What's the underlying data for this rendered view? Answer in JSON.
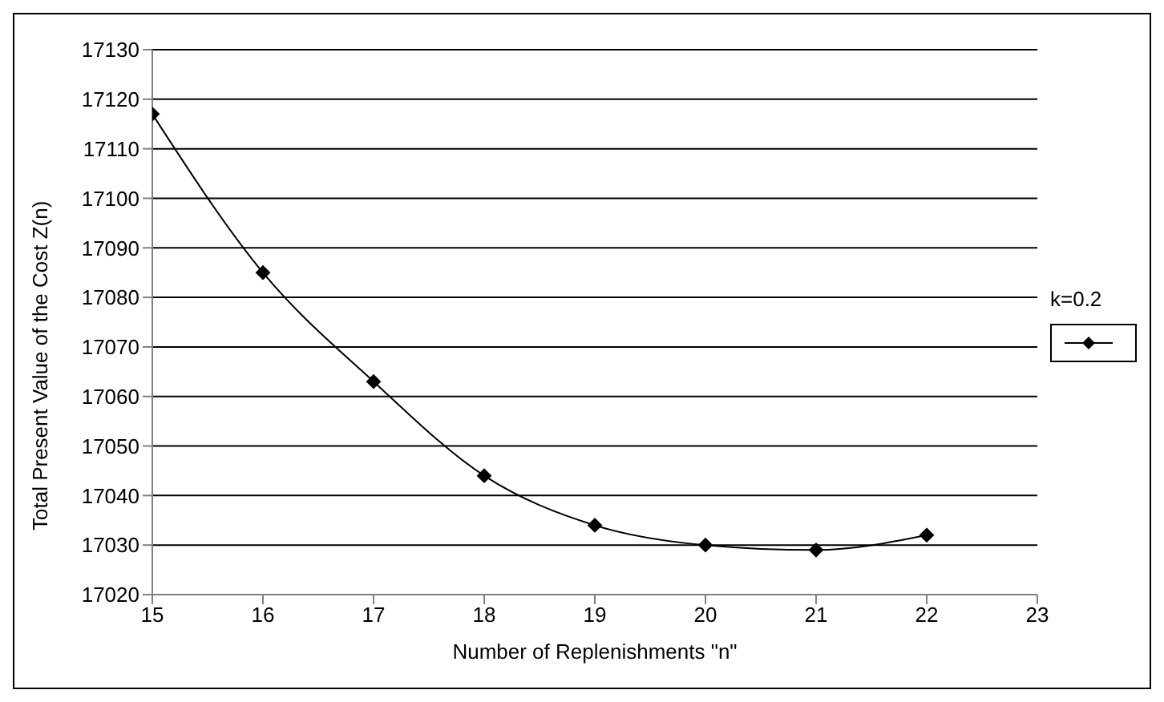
{
  "chart_data": {
    "type": "line",
    "xlabel": "Number of Replenishments \"n\"",
    "ylabel": "Total Present Value of the Cost Z(n)",
    "legend_title": "k=0.2",
    "grid": "y",
    "marker": "diamond",
    "line_style": "solid",
    "x": [
      15,
      16,
      17,
      18,
      19,
      20,
      21,
      22
    ],
    "series": [
      {
        "color": "#000000",
        "values": [
          17117,
          17085,
          17063,
          17044,
          17034,
          17030,
          17029,
          17032
        ]
      }
    ],
    "xlim": [
      15,
      23
    ],
    "xticks": [
      15,
      16,
      17,
      18,
      19,
      20,
      21,
      22,
      23
    ],
    "ylim": [
      17020,
      17130
    ],
    "yticks": [
      17020,
      17030,
      17040,
      17050,
      17060,
      17070,
      17080,
      17090,
      17100,
      17110,
      17120,
      17130
    ]
  }
}
